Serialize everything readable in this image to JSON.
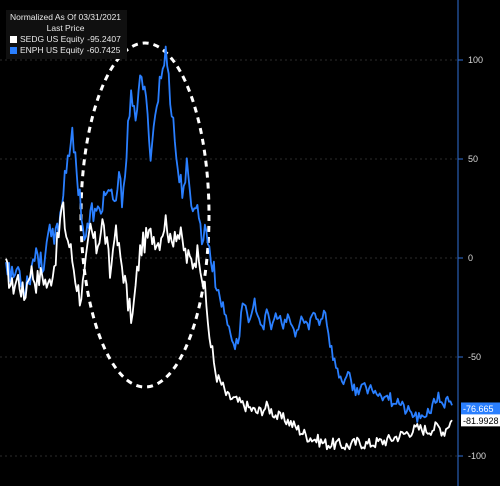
{
  "legend": {
    "header": "Normalized As Of 03/31/2021",
    "subheader": "Last Price"
  },
  "colors": {
    "background": "#000000",
    "grid": "#3a3a3a",
    "axis": "#2f6fd6",
    "tick_text": "#d8d8d8",
    "annotation": "#ffffff"
  },
  "chart_data": {
    "type": "line",
    "title": "",
    "xlabel": "",
    "ylabel": "",
    "ylim": [
      -105,
      112
    ],
    "yticks": [
      100,
      50,
      0,
      -50,
      -100
    ],
    "x_points": 230,
    "grid": "on",
    "legend_position": "top-left",
    "annotation": "dashed ellipse highlighting the first peak region",
    "series": [
      {
        "name": "SEDG US Equity",
        "legend_value": "-95.2407",
        "last_label": "-81.9928",
        "color": "#ffffff",
        "anchors": [
          [
            0,
            -5
          ],
          [
            6,
            -15
          ],
          [
            12,
            -10
          ],
          [
            18,
            -20
          ],
          [
            24,
            -5
          ],
          [
            30,
            -12
          ],
          [
            36,
            -8
          ],
          [
            42,
            -15
          ],
          [
            48,
            -3
          ],
          [
            52,
            10
          ],
          [
            56,
            27
          ],
          [
            60,
            12
          ],
          [
            64,
            5
          ],
          [
            70,
            -12
          ],
          [
            74,
            -20
          ],
          [
            78,
            -10
          ],
          [
            84,
            15
          ],
          [
            90,
            5
          ],
          [
            96,
            18
          ],
          [
            100,
            8
          ],
          [
            104,
            -10
          ],
          [
            108,
            15
          ],
          [
            112,
            5
          ],
          [
            118,
            -10
          ],
          [
            122,
            -25
          ],
          [
            126,
            -30
          ],
          [
            130,
            -10
          ],
          [
            134,
            5
          ],
          [
            140,
            10
          ],
          [
            146,
            12
          ],
          [
            152,
            8
          ],
          [
            156,
            15
          ],
          [
            160,
            20
          ],
          [
            164,
            5
          ],
          [
            168,
            15
          ],
          [
            174,
            10
          ],
          [
            180,
            0
          ],
          [
            186,
            -2
          ],
          [
            192,
            4
          ],
          [
            198,
            -18
          ],
          [
            204,
            -45
          ],
          [
            210,
            -60
          ],
          [
            216,
            -65
          ],
          [
            220,
            -70
          ],
          [
            226,
            -71
          ],
          [
            232,
            -73
          ],
          [
            240,
            -75
          ],
          [
            250,
            -78
          ],
          [
            260,
            -75
          ],
          [
            270,
            -80
          ],
          [
            280,
            -82
          ],
          [
            290,
            -86
          ],
          [
            300,
            -90
          ],
          [
            310,
            -92
          ],
          [
            320,
            -94
          ],
          [
            330,
            -94
          ],
          [
            340,
            -95
          ],
          [
            350,
            -93
          ],
          [
            360,
            -94
          ],
          [
            370,
            -93
          ],
          [
            380,
            -92
          ],
          [
            390,
            -90
          ],
          [
            400,
            -88
          ],
          [
            410,
            -86
          ],
          [
            420,
            -87
          ],
          [
            430,
            -85
          ],
          [
            436,
            -88
          ],
          [
            440,
            -84
          ],
          [
            444,
            -82
          ]
        ]
      },
      {
        "name": "ENPH US Equity",
        "legend_value": "-60.7425",
        "last_label": "-76.665",
        "color": "#2a7fff",
        "anchors": [
          [
            0,
            0
          ],
          [
            6,
            -10
          ],
          [
            12,
            -5
          ],
          [
            18,
            -15
          ],
          [
            24,
            -8
          ],
          [
            30,
            5
          ],
          [
            36,
            -5
          ],
          [
            42,
            12
          ],
          [
            48,
            8
          ],
          [
            54,
            20
          ],
          [
            58,
            40
          ],
          [
            62,
            55
          ],
          [
            66,
            60
          ],
          [
            70,
            45
          ],
          [
            74,
            30
          ],
          [
            78,
            10
          ],
          [
            82,
            15
          ],
          [
            86,
            25
          ],
          [
            90,
            20
          ],
          [
            96,
            28
          ],
          [
            100,
            35
          ],
          [
            104,
            30
          ],
          [
            108,
            25
          ],
          [
            112,
            40
          ],
          [
            116,
            30
          ],
          [
            120,
            55
          ],
          [
            124,
            80
          ],
          [
            128,
            70
          ],
          [
            132,
            85
          ],
          [
            136,
            90
          ],
          [
            140,
            75
          ],
          [
            144,
            55
          ],
          [
            148,
            70
          ],
          [
            152,
            85
          ],
          [
            156,
            95
          ],
          [
            160,
            105
          ],
          [
            164,
            80
          ],
          [
            168,
            60
          ],
          [
            172,
            40
          ],
          [
            176,
            35
          ],
          [
            180,
            45
          ],
          [
            184,
            25
          ],
          [
            188,
            30
          ],
          [
            192,
            20
          ],
          [
            196,
            10
          ],
          [
            200,
            15
          ],
          [
            204,
            0
          ],
          [
            208,
            -10
          ],
          [
            212,
            -18
          ],
          [
            216,
            -25
          ],
          [
            220,
            -32
          ],
          [
            224,
            -38
          ],
          [
            228,
            -45
          ],
          [
            232,
            -40
          ],
          [
            236,
            -20
          ],
          [
            240,
            -28
          ],
          [
            244,
            -32
          ],
          [
            248,
            -22
          ],
          [
            252,
            -30
          ],
          [
            256,
            -35
          ],
          [
            260,
            -28
          ],
          [
            264,
            -35
          ],
          [
            270,
            -28
          ],
          [
            276,
            -35
          ],
          [
            282,
            -30
          ],
          [
            288,
            -40
          ],
          [
            294,
            -30
          ],
          [
            300,
            -35
          ],
          [
            306,
            -28
          ],
          [
            312,
            -32
          ],
          [
            318,
            -26
          ],
          [
            322,
            -42
          ],
          [
            326,
            -50
          ],
          [
            330,
            -58
          ],
          [
            336,
            -62
          ],
          [
            342,
            -60
          ],
          [
            348,
            -68
          ],
          [
            354,
            -64
          ],
          [
            360,
            -68
          ],
          [
            366,
            -66
          ],
          [
            372,
            -70
          ],
          [
            378,
            -68
          ],
          [
            384,
            -72
          ],
          [
            390,
            -72
          ],
          [
            396,
            -76
          ],
          [
            402,
            -78
          ],
          [
            408,
            -80
          ],
          [
            414,
            -82
          ],
          [
            418,
            -78
          ],
          [
            424,
            -76
          ],
          [
            430,
            -70
          ],
          [
            436,
            -74
          ],
          [
            440,
            -72
          ],
          [
            444,
            -76
          ]
        ]
      }
    ]
  }
}
